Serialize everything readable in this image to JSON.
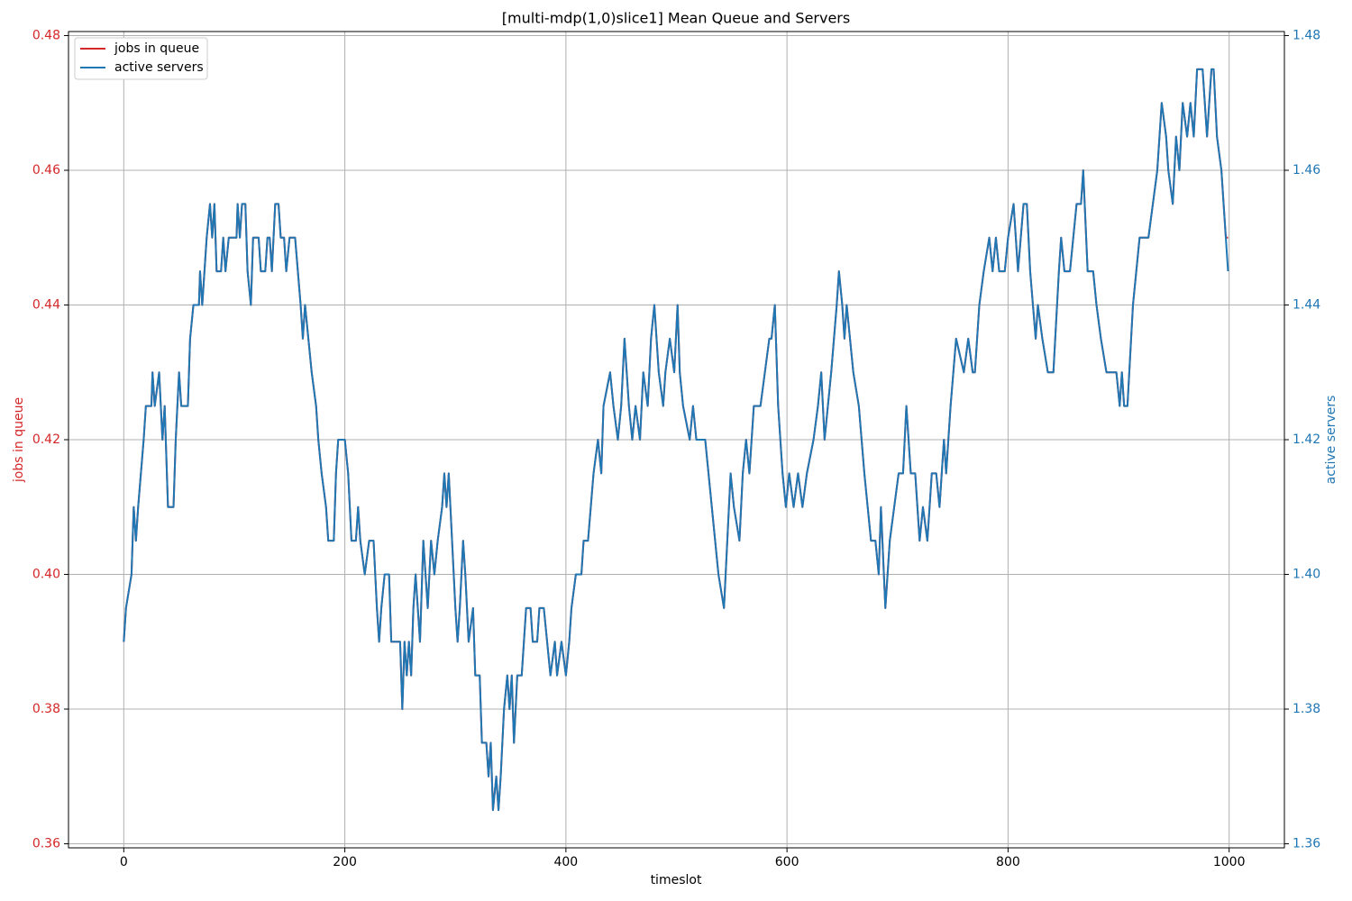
{
  "chart_data": {
    "type": "line",
    "title": "[multi-mdp(1,0)slice1] Mean Queue and Servers",
    "x_label": "timeslot",
    "y_label": "jobs in queue",
    "y2_label": "active servers",
    "xlim": [
      -50,
      1050
    ],
    "xticks": [
      0,
      200,
      400,
      600,
      800,
      1000
    ],
    "ylim": [
      0.3594,
      0.4806
    ],
    "yticks": [
      0.36,
      0.38,
      {
        "value": 0.4,
        "label": "0.40"
      },
      0.42,
      0.44,
      0.46,
      0.48
    ],
    "y2lim": [
      1.3594,
      1.4806
    ],
    "y2ticks": [
      1.36,
      1.38,
      {
        "value": 1.4,
        "label": "1.40"
      },
      1.42,
      1.44,
      1.46,
      1.48
    ],
    "grid": true,
    "legend": "upper left",
    "x": [
      0,
      2,
      7,
      9,
      11,
      13,
      18,
      20,
      25,
      26,
      28,
      32,
      35,
      37,
      40,
      45,
      47,
      50,
      52,
      58,
      60,
      63,
      68,
      69,
      71,
      75,
      78,
      80,
      82,
      84,
      88,
      90,
      92,
      95,
      102,
      103,
      105,
      107,
      110,
      112,
      115,
      117,
      122,
      124,
      128,
      130,
      132,
      134,
      137,
      140,
      142,
      145,
      147,
      150,
      155,
      160,
      162,
      164,
      167,
      170,
      174,
      176,
      179,
      183,
      185,
      190,
      192,
      194,
      200,
      203,
      206,
      210,
      212,
      214,
      218,
      222,
      226,
      229,
      231,
      233,
      236,
      240,
      242,
      250,
      252,
      254,
      256,
      258,
      260,
      262,
      264,
      266,
      268,
      271,
      275,
      278,
      281,
      284,
      288,
      290,
      292,
      294,
      297,
      300,
      302,
      304,
      307,
      309,
      312,
      316,
      318,
      322,
      324,
      328,
      330,
      332,
      334,
      337,
      339,
      341,
      344,
      347,
      349,
      351,
      353,
      356,
      360,
      364,
      368,
      370,
      374,
      376,
      380,
      383,
      386,
      390,
      392,
      396,
      400,
      403,
      405,
      409,
      414,
      416,
      420,
      425,
      429,
      432,
      434,
      440,
      443,
      447,
      450,
      453,
      457,
      460,
      463,
      467,
      470,
      474,
      477,
      480,
      484,
      488,
      490,
      494,
      498,
      501,
      503,
      506,
      512,
      515,
      518,
      526,
      532,
      538,
      543,
      546,
      549,
      552,
      557,
      560,
      563,
      566,
      570,
      576,
      580,
      584,
      586,
      589,
      592,
      596,
      599,
      602,
      606,
      610,
      614,
      618,
      624,
      628,
      631,
      634,
      637,
      640,
      645,
      647,
      650,
      652,
      654,
      657,
      660,
      665,
      670,
      673,
      676,
      680,
      683,
      685,
      689,
      693,
      697,
      701,
      705,
      708,
      712,
      716,
      720,
      723,
      727,
      731,
      735,
      738,
      742,
      744,
      748,
      753,
      760,
      764,
      768,
      770,
      774,
      778,
      783,
      786,
      789,
      792,
      797,
      800,
      805,
      809,
      814,
      817,
      820,
      825,
      827,
      831,
      836,
      841,
      846,
      848,
      851,
      856,
      859,
      862,
      866,
      868,
      872,
      877,
      880,
      884,
      889,
      898,
      901,
      903,
      905,
      908,
      913,
      916,
      919,
      927,
      931,
      935,
      939,
      943,
      945,
      949,
      952,
      955,
      958,
      962,
      965,
      968,
      971,
      976,
      980,
      984,
      986,
      989,
      993,
      997,
      999
    ],
    "series": [
      {
        "name": "jobs in queue",
        "color": "#d62728",
        "axis": "y",
        "values": [
          0.39,
          0.395,
          0.4,
          0.41,
          0.405,
          0.41,
          0.42,
          0.425,
          0.425,
          0.43,
          0.425,
          0.43,
          0.42,
          0.425,
          0.41,
          0.41,
          0.42,
          0.43,
          0.425,
          0.425,
          0.435,
          0.44,
          0.44,
          0.445,
          0.44,
          0.45,
          0.455,
          0.45,
          0.455,
          0.445,
          0.445,
          0.45,
          0.445,
          0.45,
          0.45,
          0.455,
          0.45,
          0.455,
          0.455,
          0.445,
          0.44,
          0.45,
          0.45,
          0.445,
          0.445,
          0.45,
          0.45,
          0.445,
          0.455,
          0.455,
          0.45,
          0.45,
          0.445,
          0.45,
          0.45,
          0.44,
          0.435,
          0.44,
          0.435,
          0.43,
          0.425,
          0.42,
          0.415,
          0.41,
          0.405,
          0.405,
          0.415,
          0.42,
          0.42,
          0.415,
          0.405,
          0.405,
          0.41,
          0.405,
          0.4,
          0.405,
          0.405,
          0.395,
          0.39,
          0.395,
          0.4,
          0.4,
          0.39,
          0.39,
          0.38,
          0.39,
          0.385,
          0.39,
          0.385,
          0.395,
          0.4,
          0.395,
          0.39,
          0.405,
          0.395,
          0.405,
          0.4,
          0.405,
          0.41,
          0.415,
          0.41,
          0.415,
          0.405,
          0.395,
          0.39,
          0.395,
          0.405,
          0.4,
          0.39,
          0.395,
          0.385,
          0.385,
          0.375,
          0.375,
          0.37,
          0.375,
          0.365,
          0.37,
          0.365,
          0.37,
          0.38,
          0.385,
          0.38,
          0.385,
          0.375,
          0.385,
          0.385,
          0.395,
          0.395,
          0.39,
          0.39,
          0.395,
          0.395,
          0.39,
          0.385,
          0.39,
          0.385,
          0.39,
          0.385,
          0.39,
          0.395,
          0.4,
          0.4,
          0.405,
          0.405,
          0.415,
          0.42,
          0.415,
          0.425,
          0.43,
          0.425,
          0.42,
          0.425,
          0.435,
          0.425,
          0.42,
          0.425,
          0.42,
          0.43,
          0.425,
          0.435,
          0.44,
          0.43,
          0.425,
          0.43,
          0.435,
          0.43,
          0.44,
          0.43,
          0.425,
          0.42,
          0.425,
          0.42,
          0.42,
          0.41,
          0.4,
          0.395,
          0.405,
          0.415,
          0.41,
          0.405,
          0.415,
          0.42,
          0.415,
          0.425,
          0.425,
          0.43,
          0.435,
          0.435,
          0.44,
          0.425,
          0.415,
          0.41,
          0.415,
          0.41,
          0.415,
          0.41,
          0.415,
          0.42,
          0.425,
          0.43,
          0.42,
          0.425,
          0.43,
          0.44,
          0.445,
          0.44,
          0.435,
          0.44,
          0.435,
          0.43,
          0.425,
          0.415,
          0.41,
          0.405,
          0.405,
          0.4,
          0.41,
          0.395,
          0.405,
          0.41,
          0.415,
          0.415,
          0.425,
          0.415,
          0.415,
          0.405,
          0.41,
          0.405,
          0.415,
          0.415,
          0.41,
          0.42,
          0.415,
          0.425,
          0.435,
          0.43,
          0.435,
          0.43,
          0.43,
          0.44,
          0.445,
          0.45,
          0.445,
          0.45,
          0.445,
          0.445,
          0.45,
          0.455,
          0.445,
          0.455,
          0.455,
          0.445,
          0.435,
          0.44,
          0.435,
          0.43,
          0.43,
          0.445,
          0.45,
          0.445,
          0.445,
          0.45,
          0.455,
          0.455,
          0.46,
          0.445,
          0.445,
          0.44,
          0.435,
          0.43,
          0.43,
          0.425,
          0.43,
          0.425,
          0.425,
          0.44,
          0.445,
          0.45,
          0.45,
          0.455,
          0.46,
          0.47,
          0.465,
          0.46,
          0.455,
          0.465,
          0.46,
          0.47,
          0.465,
          0.47,
          0.465,
          0.475,
          0.475,
          0.465,
          0.475,
          0.475,
          0.465,
          0.46,
          0.45,
          0.45
        ]
      },
      {
        "name": "active servers",
        "color": "#1f77b4",
        "axis": "y2",
        "values": [
          1.39,
          1.395,
          1.4,
          1.41,
          1.405,
          1.41,
          1.42,
          1.425,
          1.425,
          1.43,
          1.425,
          1.43,
          1.42,
          1.425,
          1.41,
          1.41,
          1.42,
          1.43,
          1.425,
          1.425,
          1.435,
          1.44,
          1.44,
          1.445,
          1.44,
          1.45,
          1.455,
          1.45,
          1.455,
          1.445,
          1.445,
          1.45,
          1.445,
          1.45,
          1.45,
          1.455,
          1.45,
          1.455,
          1.455,
          1.445,
          1.44,
          1.45,
          1.45,
          1.445,
          1.445,
          1.45,
          1.45,
          1.445,
          1.455,
          1.455,
          1.45,
          1.45,
          1.445,
          1.45,
          1.45,
          1.44,
          1.435,
          1.44,
          1.435,
          1.43,
          1.425,
          1.42,
          1.415,
          1.41,
          1.405,
          1.405,
          1.415,
          1.42,
          1.42,
          1.415,
          1.405,
          1.405,
          1.41,
          1.405,
          1.4,
          1.405,
          1.405,
          1.395,
          1.39,
          1.395,
          1.4,
          1.4,
          1.39,
          1.39,
          1.38,
          1.39,
          1.385,
          1.39,
          1.385,
          1.395,
          1.4,
          1.395,
          1.39,
          1.405,
          1.395,
          1.405,
          1.4,
          1.405,
          1.41,
          1.415,
          1.41,
          1.415,
          1.405,
          1.395,
          1.39,
          1.395,
          1.405,
          1.4,
          1.39,
          1.395,
          1.385,
          1.385,
          1.375,
          1.375,
          1.37,
          1.375,
          1.365,
          1.37,
          1.365,
          1.37,
          1.38,
          1.385,
          1.38,
          1.385,
          1.375,
          1.385,
          1.385,
          1.395,
          1.395,
          1.39,
          1.39,
          1.395,
          1.395,
          1.39,
          1.385,
          1.39,
          1.385,
          1.39,
          1.385,
          1.39,
          1.395,
          1.4,
          1.4,
          1.405,
          1.405,
          1.415,
          1.42,
          1.415,
          1.425,
          1.43,
          1.425,
          1.42,
          1.425,
          1.435,
          1.425,
          1.42,
          1.425,
          1.42,
          1.43,
          1.425,
          1.435,
          1.44,
          1.43,
          1.425,
          1.43,
          1.435,
          1.43,
          1.44,
          1.43,
          1.425,
          1.42,
          1.425,
          1.42,
          1.42,
          1.41,
          1.4,
          1.395,
          1.405,
          1.415,
          1.41,
          1.405,
          1.415,
          1.42,
          1.415,
          1.425,
          1.425,
          1.43,
          1.435,
          1.435,
          1.44,
          1.425,
          1.415,
          1.41,
          1.415,
          1.41,
          1.415,
          1.41,
          1.415,
          1.42,
          1.425,
          1.43,
          1.42,
          1.425,
          1.43,
          1.44,
          1.445,
          1.44,
          1.435,
          1.44,
          1.435,
          1.43,
          1.425,
          1.415,
          1.41,
          1.405,
          1.405,
          1.4,
          1.41,
          1.395,
          1.405,
          1.41,
          1.415,
          1.415,
          1.425,
          1.415,
          1.415,
          1.405,
          1.41,
          1.405,
          1.415,
          1.415,
          1.41,
          1.42,
          1.415,
          1.425,
          1.435,
          1.43,
          1.435,
          1.43,
          1.43,
          1.44,
          1.445,
          1.45,
          1.445,
          1.45,
          1.445,
          1.445,
          1.45,
          1.455,
          1.445,
          1.455,
          1.455,
          1.445,
          1.435,
          1.44,
          1.435,
          1.43,
          1.43,
          1.445,
          1.45,
          1.445,
          1.445,
          1.45,
          1.455,
          1.455,
          1.46,
          1.445,
          1.445,
          1.44,
          1.435,
          1.43,
          1.43,
          1.425,
          1.43,
          1.425,
          1.425,
          1.44,
          1.445,
          1.45,
          1.45,
          1.455,
          1.46,
          1.47,
          1.465,
          1.46,
          1.455,
          1.465,
          1.46,
          1.47,
          1.465,
          1.47,
          1.465,
          1.475,
          1.475,
          1.465,
          1.475,
          1.475,
          1.465,
          1.46,
          1.45,
          1.445
        ]
      }
    ]
  }
}
